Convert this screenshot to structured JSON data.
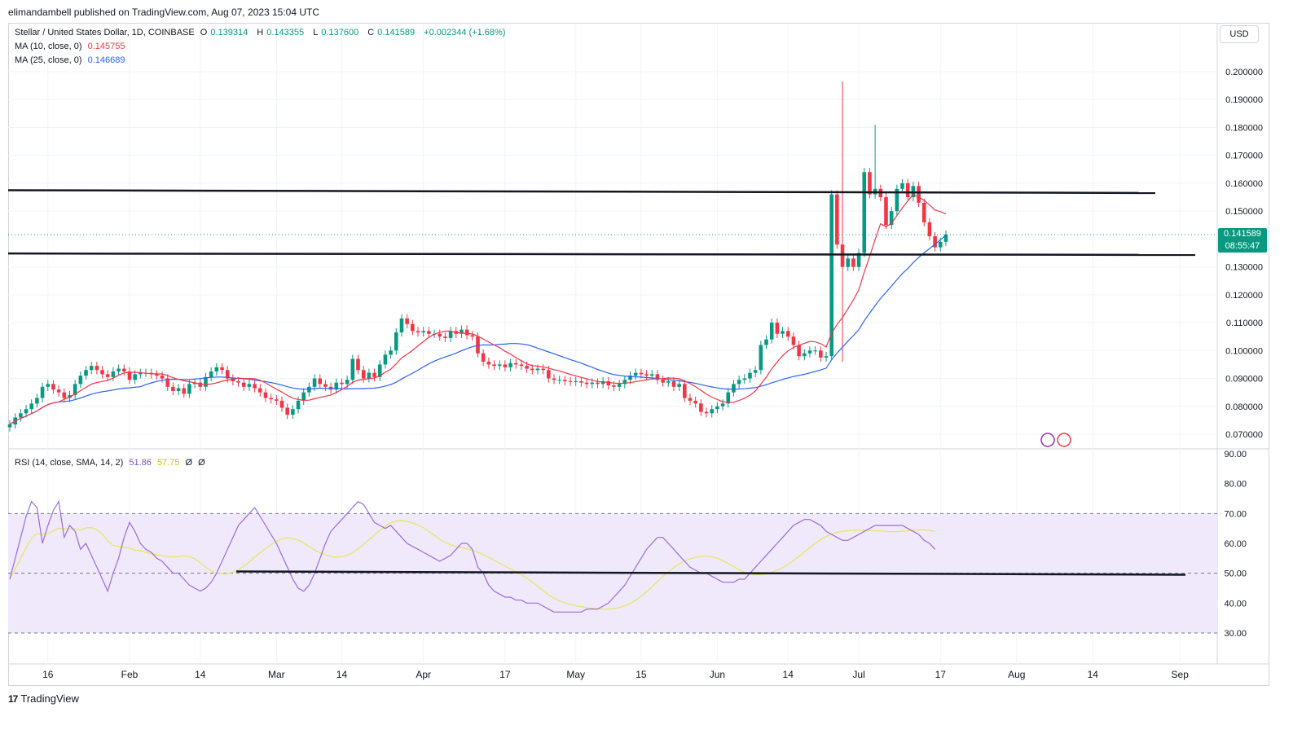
{
  "header": {
    "published": "elimandambell published on TradingView.com, Aug 07, 2023 15:04 UTC"
  },
  "legend": {
    "symbol": "Stellar / United States Dollar, 1D, COINBASE",
    "o_label": "O",
    "o": "0.139314",
    "h_label": "H",
    "h": "0.143355",
    "l_label": "L",
    "l": "0.137600",
    "c_label": "C",
    "c": "0.141589",
    "change": "+0.002344 (+1.68%)",
    "ma10_label": "MA (10, close, 0)",
    "ma10": "0.145755",
    "ma25_label": "MA (25, close, 0)",
    "ma25": "0.146689",
    "rsi_label": "RSI (14, close, SMA, 14, 2)",
    "rsi": "51.86",
    "rsi_sma": "57.75",
    "rsi_extra1": "Ø",
    "rsi_extra2": "Ø"
  },
  "currency_button": "USD",
  "price_badge": {
    "price": "0.141589",
    "countdown": "08:55:47"
  },
  "footer": {
    "brand": "TradingView",
    "logo": "17"
  },
  "colors": {
    "up": "#089981",
    "down": "#f23645",
    "ma10": "#f23645",
    "ma25": "#2962ff",
    "rsi": "#9c6ade",
    "rsi_sma": "#e6e65c",
    "band": "#efe9fb"
  },
  "chart_data": [
    {
      "type": "candlestick",
      "title": "Stellar / United States Dollar, 1D, COINBASE",
      "ylim": [
        0.065,
        0.205
      ],
      "y_ticks": [
        "0.200000",
        "0.190000",
        "0.180000",
        "0.170000",
        "0.160000",
        "0.150000",
        "0.130000",
        "0.120000",
        "0.110000",
        "0.100000",
        "0.090000",
        "0.080000",
        "0.070000"
      ],
      "x_ticks": [
        "16",
        "Feb",
        "14",
        "Mar",
        "14",
        "Apr",
        "17",
        "May",
        "15",
        "Jun",
        "14",
        "Jul",
        "17",
        "Aug",
        "14",
        "Sep"
      ],
      "closes": [
        0.0735,
        0.076,
        0.0775,
        0.079,
        0.081,
        0.083,
        0.087,
        0.088,
        0.086,
        0.085,
        0.083,
        0.084,
        0.088,
        0.091,
        0.093,
        0.0945,
        0.093,
        0.0915,
        0.0905,
        0.0925,
        0.0935,
        0.0925,
        0.0895,
        0.0915,
        0.092,
        0.092,
        0.0915,
        0.091,
        0.09,
        0.087,
        0.0855,
        0.0865,
        0.0845,
        0.088,
        0.0885,
        0.087,
        0.0905,
        0.0925,
        0.094,
        0.093,
        0.09,
        0.089,
        0.0885,
        0.087,
        0.088,
        0.0865,
        0.085,
        0.083,
        0.0825,
        0.082,
        0.0795,
        0.077,
        0.079,
        0.082,
        0.085,
        0.087,
        0.09,
        0.088,
        0.087,
        0.086,
        0.0885,
        0.088,
        0.0895,
        0.097,
        0.093,
        0.09,
        0.092,
        0.0905,
        0.095,
        0.0985,
        0.1,
        0.1065,
        0.1115,
        0.1095,
        0.107,
        0.1065,
        0.107,
        0.106,
        0.106,
        0.105,
        0.1045,
        0.107,
        0.106,
        0.1075,
        0.1055,
        0.105,
        0.099,
        0.096,
        0.095,
        0.0945,
        0.095,
        0.094,
        0.0955,
        0.095,
        0.0945,
        0.0935,
        0.093,
        0.0935,
        0.093,
        0.09,
        0.0895,
        0.0895,
        0.089,
        0.0888,
        0.089,
        0.0885,
        0.088,
        0.0885,
        0.088,
        0.089,
        0.0875,
        0.087,
        0.088,
        0.0895,
        0.091,
        0.092,
        0.0915,
        0.091,
        0.0915,
        0.0895,
        0.0885,
        0.089,
        0.087,
        0.088,
        0.083,
        0.082,
        0.081,
        0.078,
        0.0775,
        0.079,
        0.08,
        0.081,
        0.085,
        0.088,
        0.0895,
        0.09,
        0.092,
        0.093,
        0.102,
        0.104,
        0.11,
        0.106,
        0.107,
        0.105,
        0.102,
        0.098,
        0.099,
        0.1,
        0.1,
        0.0975,
        0.098,
        0.156,
        0.138,
        0.13,
        0.133,
        0.13,
        0.135,
        0.164,
        0.156,
        0.158,
        0.155,
        0.145,
        0.15,
        0.158,
        0.16,
        0.155,
        0.159,
        0.153,
        0.146,
        0.141,
        0.137,
        0.139,
        0.1416
      ]
    },
    {
      "type": "line",
      "title": "RSI (14, close, SMA, 14, 2)",
      "ylim": [
        25,
        90
      ],
      "y_ticks": [
        "90.00",
        "80.00",
        "70.00",
        "60.00",
        "50.00",
        "40.00",
        "30.00"
      ],
      "band": [
        30,
        70
      ],
      "series": [
        {
          "name": "RSI",
          "values": [
            48,
            55,
            62,
            69,
            74,
            72,
            60,
            66,
            71,
            74,
            62,
            66,
            64,
            58,
            60,
            56,
            52,
            48,
            44,
            50,
            55,
            62,
            67,
            64,
            60,
            58,
            57,
            55,
            54,
            52,
            50,
            50,
            48,
            46,
            45,
            44,
            45,
            47,
            50,
            54,
            58,
            62,
            66,
            68,
            70,
            72,
            69,
            66,
            63,
            60,
            56,
            52,
            48,
            45,
            44,
            46,
            50,
            55,
            60,
            64,
            66,
            68,
            70,
            72,
            74,
            73,
            70,
            67,
            66,
            65,
            66,
            64,
            62,
            60,
            59,
            58,
            57,
            56,
            55,
            54,
            55,
            56,
            58,
            60,
            60,
            58,
            52,
            50,
            46,
            44,
            43,
            42,
            42,
            41,
            41,
            40,
            40,
            40,
            39,
            38,
            37,
            37,
            37,
            37,
            37,
            37,
            38,
            38,
            38,
            39,
            40,
            42,
            44,
            46,
            49,
            52,
            55,
            58,
            60,
            62,
            62,
            60,
            58,
            56,
            54,
            52,
            51,
            50,
            50,
            49,
            48,
            47,
            47,
            47,
            48,
            48,
            50,
            52,
            54,
            56,
            58,
            60,
            62,
            64,
            66,
            67,
            68,
            68,
            67,
            66,
            64,
            63,
            62,
            61,
            61,
            62,
            63,
            64,
            65,
            66,
            66,
            66,
            66,
            66,
            66,
            65,
            64,
            63,
            61,
            60,
            58
          ]
        }
      ]
    }
  ]
}
